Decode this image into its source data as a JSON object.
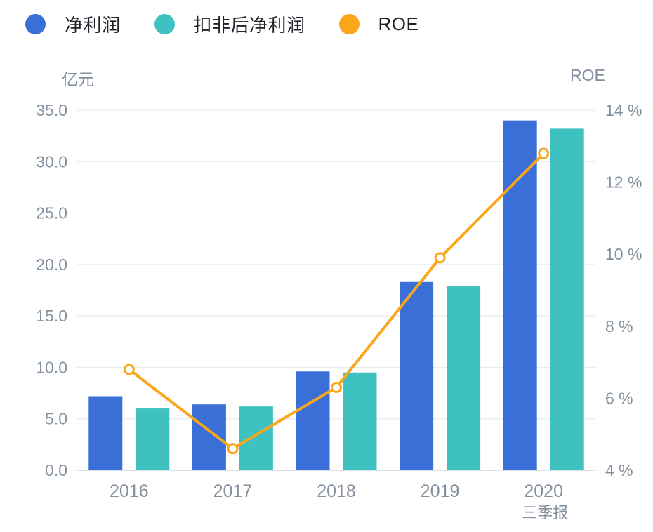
{
  "legend": [
    {
      "label": "净利润",
      "color": "#3A6FD8"
    },
    {
      "label": "扣非后净利润",
      "color": "#3FC1C1"
    },
    {
      "label": "ROE",
      "color": "#FAA61A"
    }
  ],
  "chart_data": {
    "type": "bar+line",
    "title": "",
    "categories": [
      "2016",
      "2017",
      "2018",
      "2019",
      "2020"
    ],
    "series": [
      {
        "name": "净利润",
        "type": "bar",
        "axis": "left",
        "color": "#3A6FD8",
        "values": [
          7.2,
          6.4,
          9.6,
          18.3,
          34.0
        ]
      },
      {
        "name": "扣非后净利润",
        "type": "bar",
        "axis": "left",
        "color": "#3FC1C1",
        "values": [
          6.0,
          6.2,
          9.5,
          17.9,
          33.2
        ]
      },
      {
        "name": "ROE",
        "type": "line",
        "axis": "right",
        "color": "#FAA61A",
        "values": [
          6.8,
          4.6,
          6.3,
          9.9,
          12.8
        ]
      }
    ],
    "left_axis": {
      "title": "亿元",
      "min": 0,
      "max": 35,
      "tick_values": [
        0,
        5,
        10,
        15,
        20,
        25,
        30,
        35
      ],
      "tick_labels": [
        "0.0",
        "5.0",
        "10.0",
        "15.0",
        "20.0",
        "25.0",
        "30.0",
        "35.0"
      ]
    },
    "right_axis": {
      "title": "ROE",
      "min": 4,
      "max": 14,
      "tick_values": [
        4,
        6,
        8,
        10,
        12,
        14
      ],
      "tick_labels": [
        "4 %",
        "6 %",
        "8 %",
        "10 %",
        "12 %",
        "14 %"
      ]
    },
    "x_axis_note": "三季报",
    "grid": true,
    "legend_position": "top-left"
  }
}
